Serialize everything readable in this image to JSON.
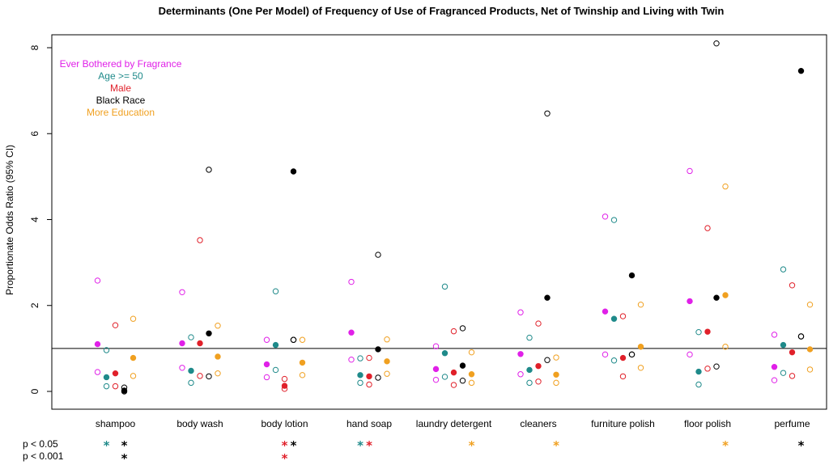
{
  "chart_data": {
    "type": "scatter",
    "title": "Determinants (One Per Model) of Frequency of Use of Fragranced Products, Net of Twinship and Living with Twin",
    "ylabel": "Proportionate Odds Ratio (95% CI)",
    "ylim": [
      0,
      8
    ],
    "yticks": [
      0,
      2,
      4,
      6,
      8
    ],
    "reference_line": 1,
    "categories": [
      "shampoo",
      "body wash",
      "body lotion",
      "hand soap",
      "laundry detergent",
      "cleaners",
      "furniture polish",
      "floor polish",
      "perfume"
    ],
    "series": [
      {
        "name": "Ever Bothered by Fragrance",
        "color": "#e020e8",
        "estimate": [
          1.1,
          1.12,
          0.63,
          1.37,
          0.52,
          0.87,
          1.86,
          2.1,
          0.57
        ],
        "ci_low": [
          0.45,
          0.55,
          0.33,
          0.74,
          0.27,
          0.4,
          0.86,
          0.86,
          0.26
        ],
        "ci_high": [
          2.58,
          2.31,
          1.2,
          2.55,
          1.05,
          1.84,
          4.07,
          5.13,
          1.32
        ]
      },
      {
        "name": "Age >= 50",
        "color": "#1f8a8a",
        "estimate": [
          0.33,
          0.48,
          1.08,
          0.38,
          0.89,
          0.5,
          1.69,
          0.46,
          1.08
        ],
        "ci_low": [
          0.12,
          0.2,
          0.5,
          0.2,
          0.34,
          0.2,
          0.72,
          0.16,
          0.43
        ],
        "ci_high": [
          0.96,
          1.26,
          2.33,
          0.77,
          2.44,
          1.25,
          3.99,
          1.38,
          2.84
        ]
      },
      {
        "name": "Male",
        "color": "#e0202a",
        "estimate": [
          0.42,
          1.12,
          0.13,
          0.35,
          0.44,
          0.59,
          0.78,
          1.39,
          0.91
        ],
        "ci_low": [
          0.12,
          0.36,
          0.06,
          0.16,
          0.15,
          0.23,
          0.35,
          0.53,
          0.36
        ],
        "ci_high": [
          1.54,
          3.52,
          0.29,
          0.78,
          1.4,
          1.58,
          1.75,
          3.8,
          2.47
        ]
      },
      {
        "name": "Black Race",
        "color": "#000000",
        "estimate": [
          0.02,
          1.35,
          5.12,
          0.98,
          0.6,
          2.18,
          2.7,
          2.18,
          7.46
        ],
        "ci_low": [
          0.0,
          0.35,
          1.2,
          0.32,
          0.25,
          0.73,
          0.86,
          0.58,
          1.28
        ],
        "ci_high": [
          0.09,
          5.16,
          1.2,
          3.18,
          1.47,
          6.47,
          0.86,
          8.1,
          1.28
        ]
      },
      {
        "name": "More Education",
        "color": "#f0a020",
        "estimate": [
          0.78,
          0.81,
          0.67,
          0.7,
          0.4,
          0.39,
          1.04,
          2.24,
          0.98
        ],
        "ci_low": [
          0.36,
          0.42,
          0.38,
          0.41,
          0.2,
          0.2,
          0.55,
          1.04,
          0.51
        ],
        "ci_high": [
          1.69,
          1.53,
          1.2,
          1.21,
          0.91,
          0.79,
          2.02,
          4.77,
          2.02
        ]
      }
    ],
    "legend": {
      "position": "top-left",
      "entries": [
        "Ever Bothered by Fragrance",
        "Age >= 50",
        "Male",
        "Black Race",
        "More Education"
      ]
    },
    "significance": {
      "labels": [
        "p < 0.05",
        "p < 0.001"
      ],
      "star_symbol": "*",
      "p05": [
        {
          "category": 0,
          "series": 1
        },
        {
          "category": 0,
          "series": 3
        },
        {
          "category": 2,
          "series": 2
        },
        {
          "category": 2,
          "series": 3
        },
        {
          "category": 3,
          "series": 1
        },
        {
          "category": 3,
          "series": 2
        },
        {
          "category": 4,
          "series": 4
        },
        {
          "category": 5,
          "series": 4
        },
        {
          "category": 7,
          "series": 4
        },
        {
          "category": 8,
          "series": 3
        }
      ],
      "p001": [
        {
          "category": 0,
          "series": 3
        },
        {
          "category": 2,
          "series": 2
        }
      ]
    }
  }
}
